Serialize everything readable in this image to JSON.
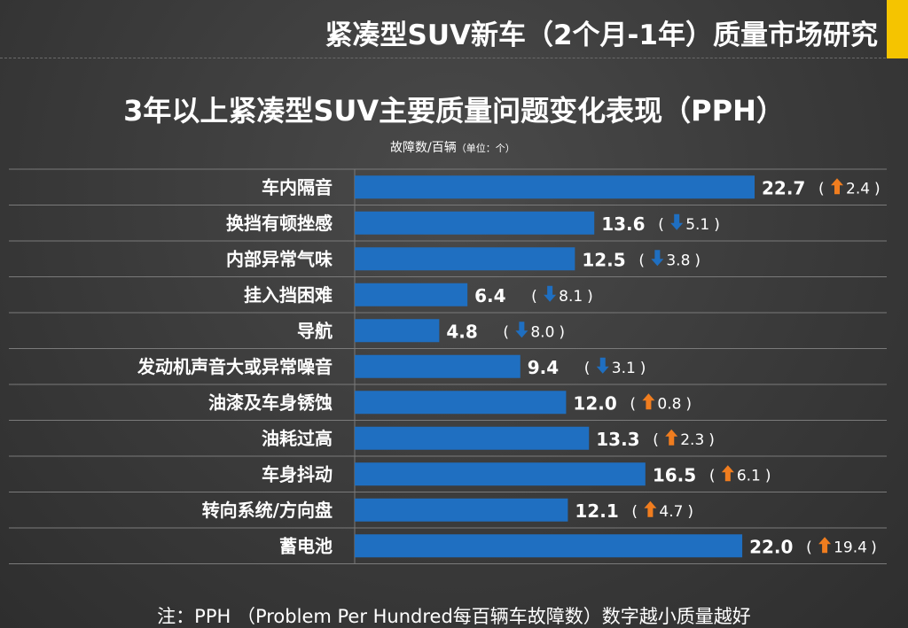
{
  "header": {
    "report_title": "紧凑型SUV新车（2个月-1年）质量市场研究",
    "accent_color": "#f5c400"
  },
  "chart_title": "3年以上紧凑型SUV主要质量问题变化表现（PPH）",
  "unit_label": "故障数/百辆",
  "unit_note": "（单位：个）",
  "footnote": "注：PPH （Problem Per Hundred每百辆车故障数）数字越小质量越好",
  "colors": {
    "bar": "#1f6fc1",
    "up_arrow": "#f07d1f",
    "down_arrow": "#1f6fc1",
    "gridline": "#7a7a7a"
  },
  "chart_data": {
    "type": "bar",
    "orientation": "horizontal",
    "categories": [
      "车内隔音",
      "换挡有顿挫感",
      "内部异常气味",
      "挂入挡困难",
      "导航",
      "发动机声音大或异常噪音",
      "油漆及车身锈蚀",
      "油耗过高",
      "车身抖动",
      "转向系统/方向盘",
      "蓄电池"
    ],
    "values": [
      22.7,
      13.6,
      12.5,
      6.4,
      4.8,
      9.4,
      12.0,
      13.3,
      16.5,
      12.1,
      22.0
    ],
    "value_labels": [
      "22.7",
      "13.6",
      "12.5",
      "6.4",
      "4.8",
      "9.4",
      "12.0",
      "13.3",
      "16.5",
      "12.1",
      "22.0"
    ],
    "changes": [
      {
        "direction": "up",
        "value": "2.4"
      },
      {
        "direction": "down",
        "value": "5.1"
      },
      {
        "direction": "down",
        "value": "3.8"
      },
      {
        "direction": "down",
        "value": "8.1"
      },
      {
        "direction": "down",
        "value": "8.0"
      },
      {
        "direction": "down",
        "value": "3.1"
      },
      {
        "direction": "up",
        "value": "0.8"
      },
      {
        "direction": "up",
        "value": "2.3"
      },
      {
        "direction": "up",
        "value": "6.1"
      },
      {
        "direction": "up",
        "value": "4.7"
      },
      {
        "direction": "up",
        "value": "19.4"
      }
    ],
    "xlim": [
      0,
      22.7
    ],
    "grid": "horizontal separators"
  }
}
